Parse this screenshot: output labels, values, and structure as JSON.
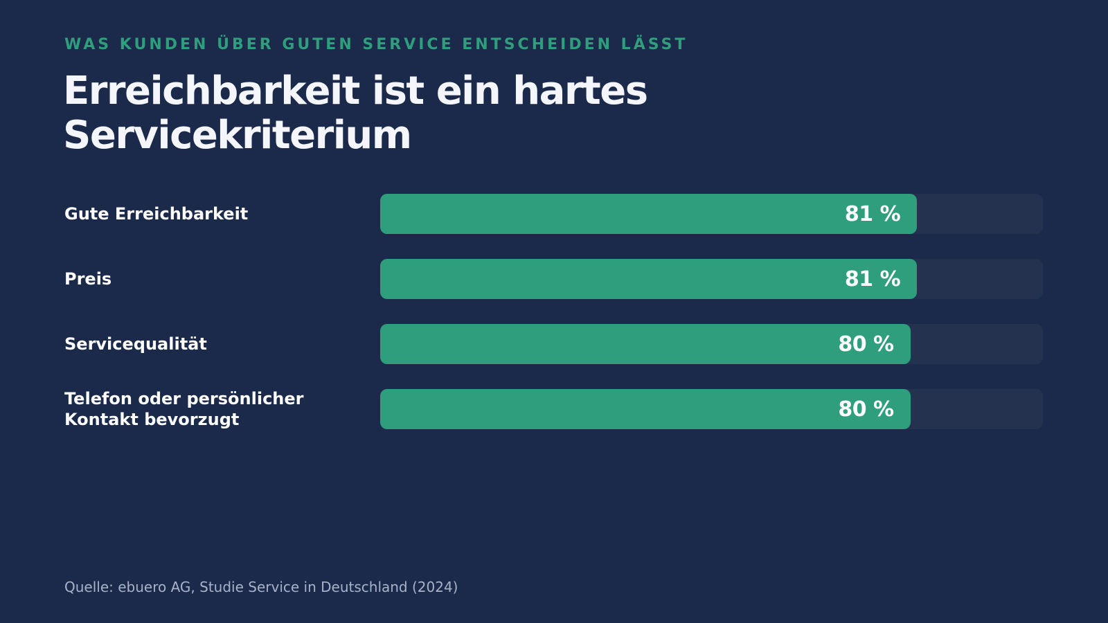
{
  "eyebrow": "WAS KUNDEN ÜBER GUTEN SERVICE ENTSCHEIDEN LÄSST",
  "title_line1": "Erreichbarkeit ist ein hartes",
  "title_line2": "Servicekriterium",
  "source": "Quelle: ebuero AG, Studie Service in Deutschland (2024)",
  "colors": {
    "background": "#1b2a4a",
    "bar": "#2e9e7d",
    "track": "#24324f",
    "accent": "#2e9e7d"
  },
  "chart_data": {
    "type": "bar",
    "orientation": "horizontal",
    "categories": [
      "Gute Erreichbarkeit",
      "Preis",
      "Servicequalität",
      "Telefon oder persönlicher Kontakt bevorzugt"
    ],
    "values": [
      81,
      81,
      80,
      80
    ],
    "value_labels": [
      "81 %",
      "81 %",
      "80 %",
      "80 %"
    ],
    "unit": "%",
    "xlim": [
      0,
      100
    ],
    "grid": false,
    "legend": "none"
  }
}
